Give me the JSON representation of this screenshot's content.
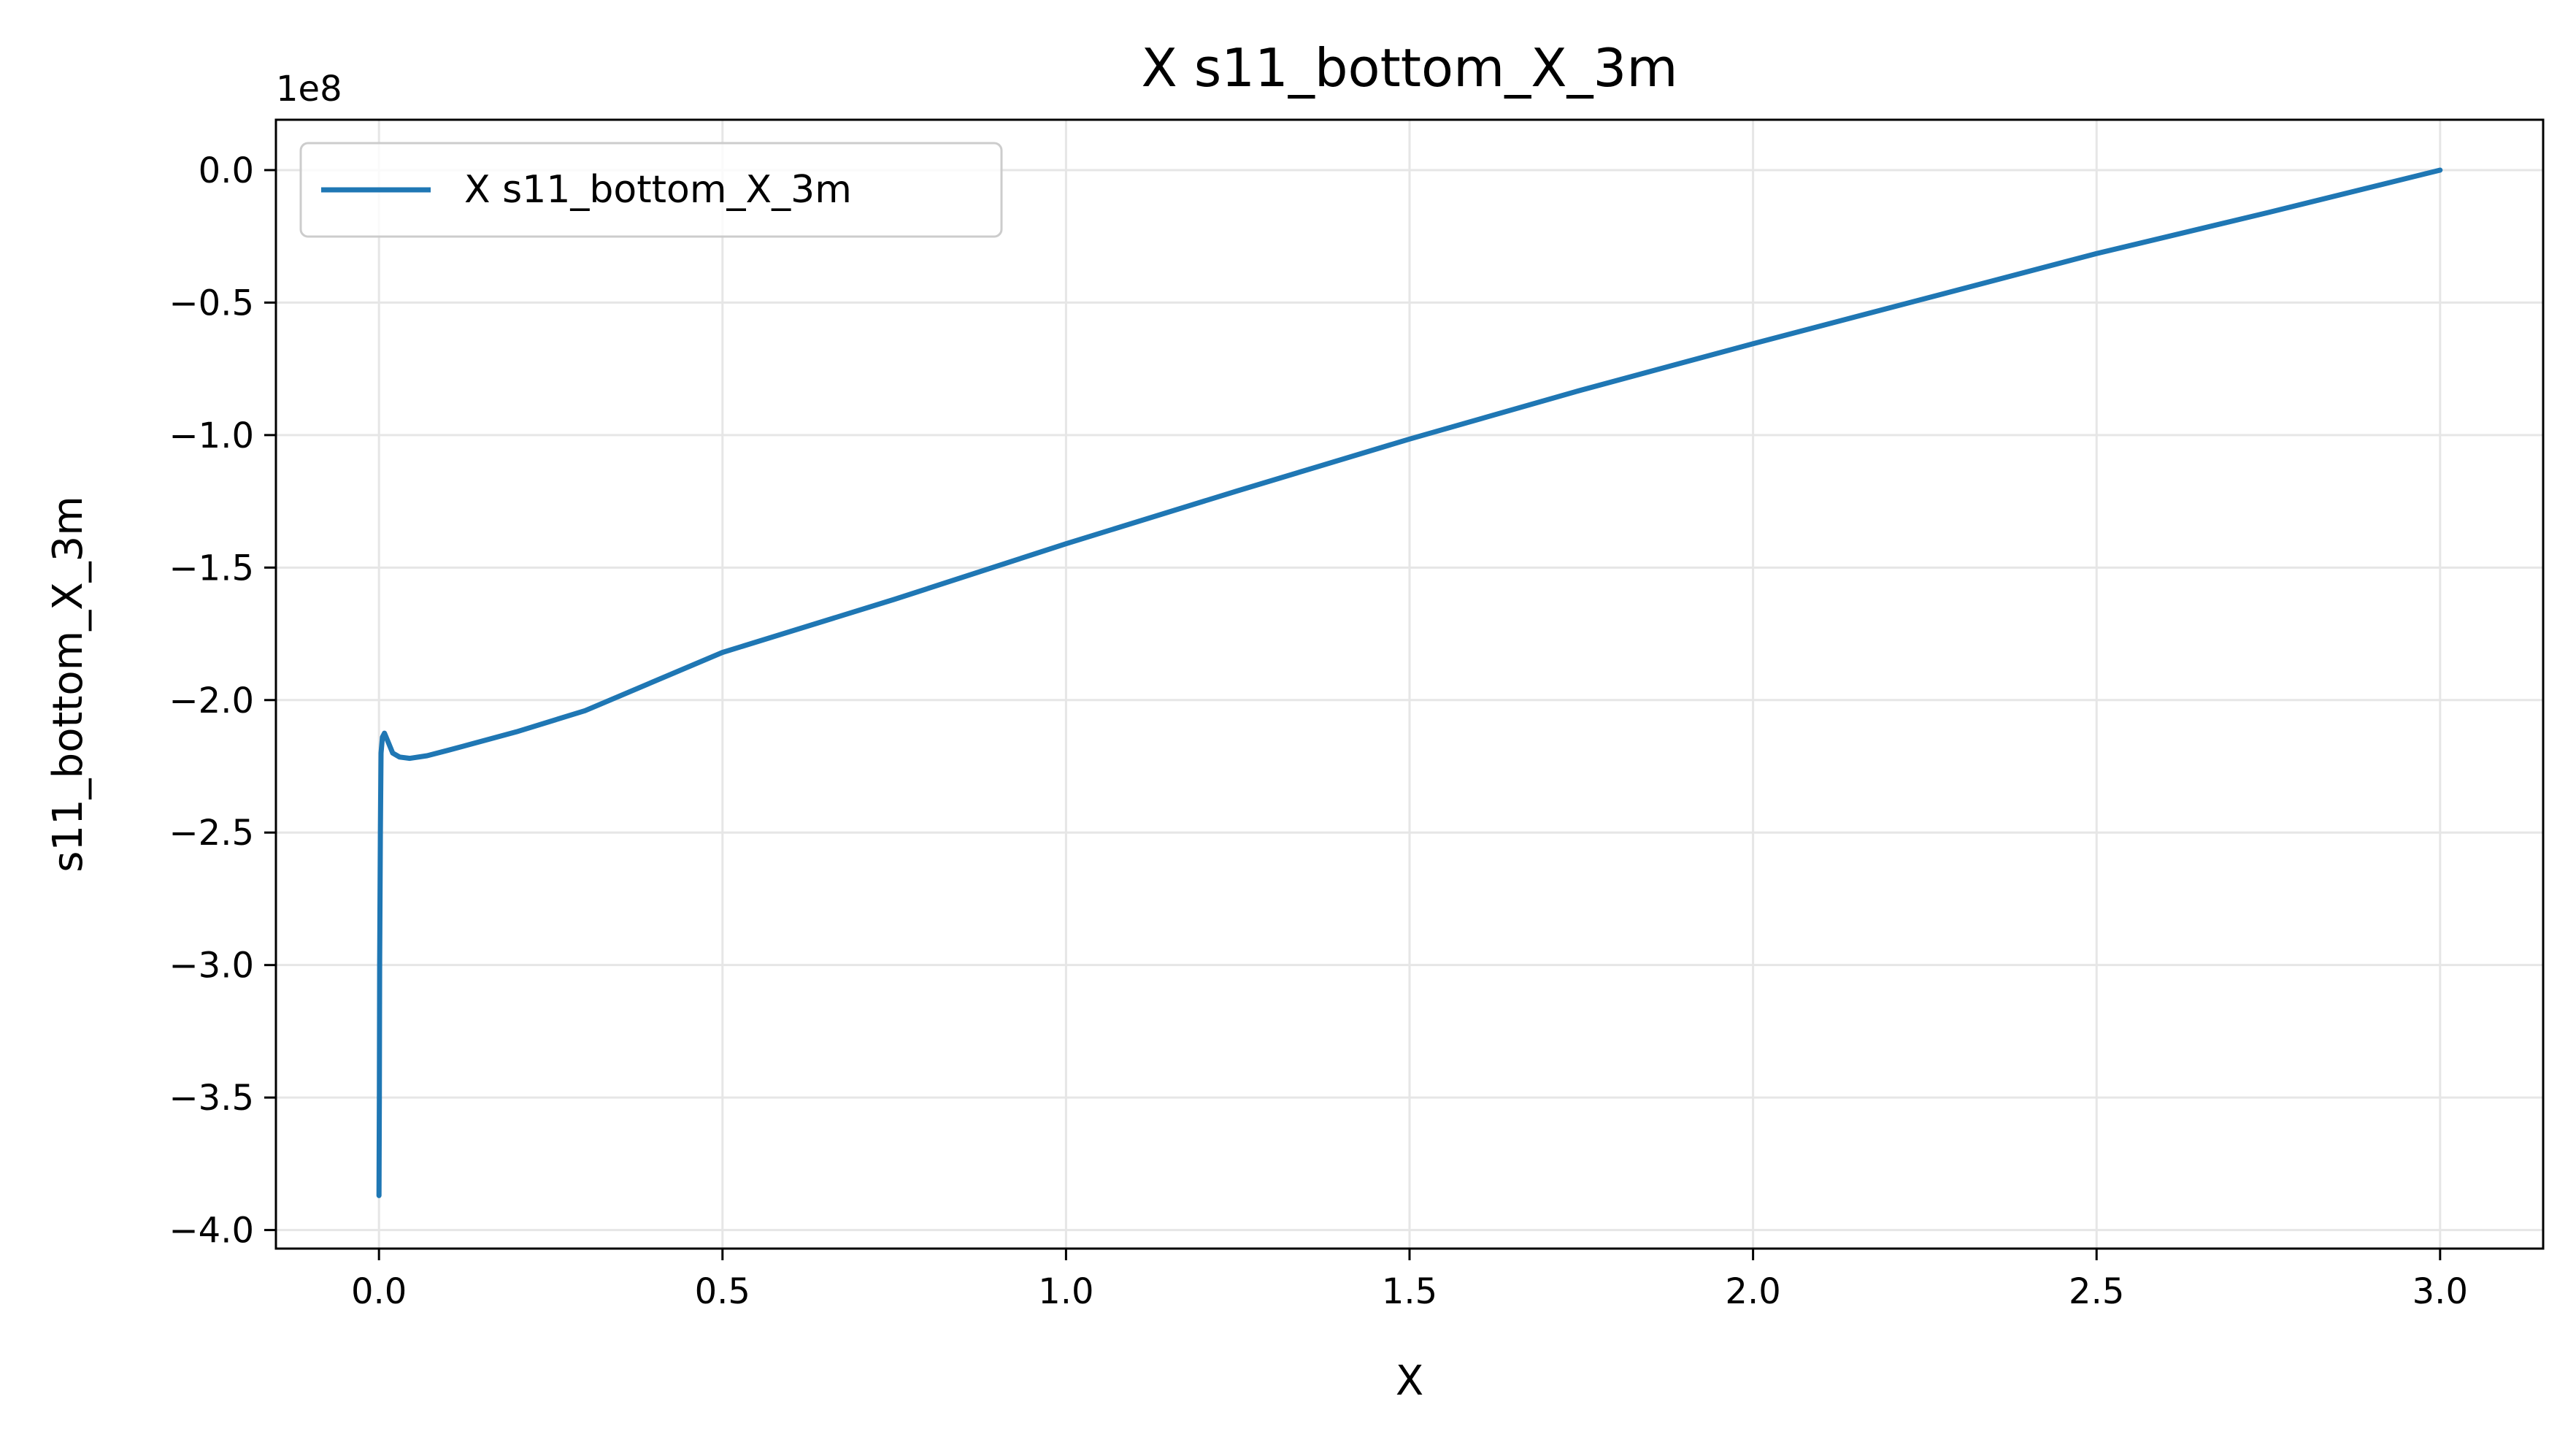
{
  "chart_data": {
    "type": "line",
    "title": "X s11_bottom_X_3m",
    "xlabel": "X",
    "ylabel": "s11_bottom_X_3m",
    "y_offset_label": "1e8",
    "xlim": [
      -0.15,
      3.15
    ],
    "ylim": [
      -4.07,
      0.19
    ],
    "x_ticks": [
      0.0,
      0.5,
      1.0,
      1.5,
      2.0,
      2.5,
      3.0
    ],
    "x_tick_labels": [
      "0.0",
      "0.5",
      "1.0",
      "1.5",
      "2.0",
      "2.5",
      "3.0"
    ],
    "y_ticks": [
      0.0,
      -0.5,
      -1.0,
      -1.5,
      -2.0,
      -2.5,
      -3.0,
      -3.5,
      -4.0
    ],
    "y_tick_labels": [
      "0.0",
      "−0.5",
      "−1.0",
      "−1.5",
      "−2.0",
      "−2.5",
      "−3.0",
      "−3.5",
      "−4.0"
    ],
    "grid": true,
    "legend_position": "upper-left",
    "series": [
      {
        "name": "X s11_bottom_X_3m",
        "color": "#1f77b4",
        "x": [
          0.0,
          0.0005,
          0.001,
          0.002,
          0.003,
          0.005,
          0.008,
          0.012,
          0.02,
          0.03,
          0.045,
          0.07,
          0.1,
          0.2,
          0.3,
          0.5,
          0.75,
          1.0,
          1.25,
          1.5,
          1.75,
          2.0,
          2.25,
          2.5,
          2.75,
          3.0
        ],
        "y": [
          -3.87,
          -3.5,
          -3.0,
          -2.5,
          -2.2,
          -2.14,
          -2.125,
          -2.15,
          -2.2,
          -2.215,
          -2.22,
          -2.21,
          -2.19,
          -2.12,
          -2.04,
          -1.82,
          -1.62,
          -1.41,
          -1.21,
          -1.015,
          -0.83,
          -0.655,
          -0.485,
          -0.315,
          -0.16,
          0.0
        ]
      }
    ]
  }
}
